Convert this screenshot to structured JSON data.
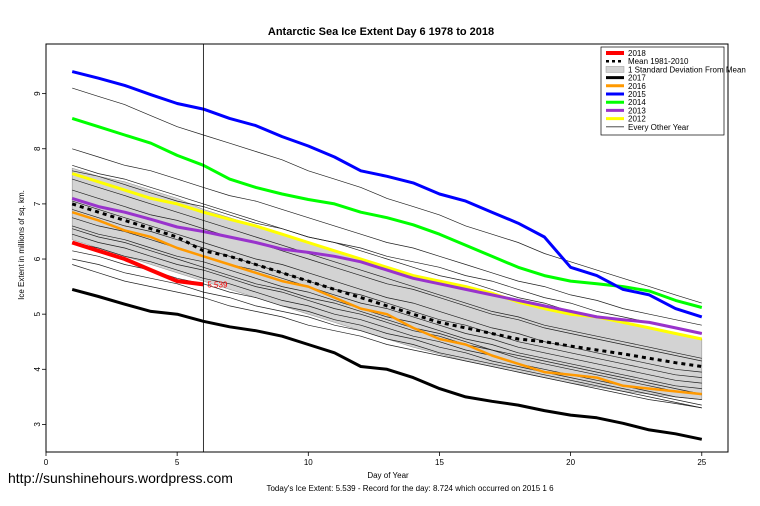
{
  "watermark": "http://sunshinehours.wordpress.com",
  "footer": "Today's Ice Extent: 5.539  - Record for the day: 8.724 which occurred on 2015 1 6",
  "chart_data": {
    "type": "line",
    "title": "Antarctic Sea Ice Extent Day 6 1978 to 2018",
    "xlabel": "Day of Year",
    "ylabel": "Ice Extent in millions of sq. km.",
    "xlim": [
      0,
      26
    ],
    "ylim": [
      2.5,
      9.9
    ],
    "xticks": [
      0,
      5,
      10,
      15,
      20,
      25
    ],
    "yticks": [
      3,
      4,
      5,
      6,
      7,
      8,
      9
    ],
    "current_day": 6,
    "annotation": {
      "x": 6,
      "y": 5.539,
      "text": "5.539",
      "color": "#ff0000"
    },
    "std_band": {
      "x": [
        1,
        2,
        3,
        4,
        5,
        6,
        7,
        8,
        9,
        10,
        11,
        12,
        13,
        14,
        15,
        16,
        17,
        18,
        19,
        20,
        21,
        22,
        23,
        24,
        25
      ],
      "upper": [
        7.65,
        7.5,
        7.4,
        7.25,
        7.1,
        6.9,
        6.75,
        6.6,
        6.45,
        6.3,
        6.15,
        6.0,
        5.85,
        5.7,
        5.55,
        5.45,
        5.35,
        5.25,
        5.15,
        5.05,
        4.95,
        4.85,
        4.75,
        4.65,
        4.55
      ],
      "lower": [
        6.35,
        6.2,
        6.05,
        5.9,
        5.75,
        5.6,
        5.45,
        5.3,
        5.15,
        5.0,
        4.85,
        4.7,
        4.55,
        4.4,
        4.28,
        4.15,
        4.05,
        3.95,
        3.85,
        3.75,
        3.68,
        3.6,
        3.55,
        3.5,
        3.45
      ]
    },
    "series": [
      {
        "name": "2018",
        "color": "#ff0000",
        "width": 4,
        "dash": "",
        "x": [
          1,
          2,
          3,
          4,
          5,
          6
        ],
        "values": [
          6.3,
          6.15,
          6.0,
          5.8,
          5.6,
          5.54
        ]
      },
      {
        "name": "Mean 1981-2010",
        "color": "#000000",
        "width": 3,
        "dash": "4,4",
        "x": [
          1,
          2,
          3,
          4,
          5,
          6,
          7,
          8,
          9,
          10,
          11,
          12,
          13,
          14,
          15,
          16,
          17,
          18,
          19,
          20,
          21,
          22,
          23,
          24,
          25
        ],
        "values": [
          7.0,
          6.85,
          6.7,
          6.55,
          6.4,
          6.15,
          6.05,
          5.9,
          5.75,
          5.6,
          5.45,
          5.3,
          5.15,
          5.0,
          4.85,
          4.75,
          4.65,
          4.55,
          4.5,
          4.42,
          4.35,
          4.28,
          4.2,
          4.12,
          4.05
        ]
      },
      {
        "name": "2017",
        "color": "#000000",
        "width": 3,
        "dash": "",
        "x": [
          1,
          2,
          3,
          4,
          5,
          6,
          7,
          8,
          9,
          10,
          11,
          12,
          13,
          14,
          15,
          16,
          17,
          18,
          19,
          20,
          21,
          22,
          23,
          24,
          25
        ],
        "values": [
          5.45,
          5.32,
          5.18,
          5.05,
          5.0,
          4.87,
          4.77,
          4.7,
          4.6,
          4.45,
          4.3,
          4.05,
          4.0,
          3.85,
          3.65,
          3.5,
          3.42,
          3.35,
          3.25,
          3.17,
          3.12,
          3.02,
          2.9,
          2.83,
          2.73
        ]
      },
      {
        "name": "2016",
        "color": "#ff9900",
        "width": 2.5,
        "dash": "",
        "x": [
          1,
          2,
          3,
          4,
          5,
          6,
          7,
          8,
          9,
          10,
          11,
          12,
          13,
          14,
          15,
          16,
          17,
          18,
          19,
          20,
          21,
          22,
          23,
          24,
          25
        ],
        "values": [
          6.85,
          6.7,
          6.52,
          6.4,
          6.2,
          6.05,
          5.9,
          5.75,
          5.6,
          5.5,
          5.3,
          5.1,
          5.0,
          4.75,
          4.55,
          4.45,
          4.25,
          4.1,
          3.95,
          3.9,
          3.85,
          3.7,
          3.65,
          3.6,
          3.55
        ]
      },
      {
        "name": "2015",
        "color": "#0000ff",
        "width": 3,
        "dash": "",
        "x": [
          1,
          2,
          3,
          4,
          5,
          6,
          7,
          8,
          9,
          10,
          11,
          12,
          13,
          14,
          15,
          16,
          17,
          18,
          19,
          20,
          21,
          22,
          23,
          24,
          25
        ],
        "values": [
          9.4,
          9.28,
          9.15,
          8.98,
          8.82,
          8.72,
          8.55,
          8.42,
          8.22,
          8.05,
          7.85,
          7.6,
          7.5,
          7.38,
          7.18,
          7.05,
          6.85,
          6.65,
          6.4,
          5.85,
          5.7,
          5.45,
          5.35,
          5.1,
          4.95
        ]
      },
      {
        "name": "2014",
        "color": "#00ff00",
        "width": 3,
        "dash": "",
        "x": [
          1,
          2,
          3,
          4,
          5,
          6,
          7,
          8,
          9,
          10,
          11,
          12,
          13,
          14,
          15,
          16,
          17,
          18,
          19,
          20,
          21,
          22,
          23,
          24,
          25
        ],
        "values": [
          8.55,
          8.4,
          8.25,
          8.1,
          7.88,
          7.7,
          7.45,
          7.3,
          7.18,
          7.08,
          7.0,
          6.85,
          6.75,
          6.62,
          6.45,
          6.25,
          6.05,
          5.85,
          5.7,
          5.6,
          5.55,
          5.5,
          5.42,
          5.25,
          5.12
        ]
      },
      {
        "name": "2013",
        "color": "#9933cc",
        "width": 3,
        "dash": "",
        "x": [
          1,
          2,
          3,
          4,
          5,
          6,
          7,
          8,
          9,
          10,
          11,
          12,
          13,
          14,
          15,
          16,
          17,
          18,
          19,
          20,
          21,
          22,
          23,
          24,
          25
        ],
        "values": [
          7.1,
          6.95,
          6.85,
          6.72,
          6.58,
          6.5,
          6.4,
          6.3,
          6.18,
          6.12,
          6.05,
          5.95,
          5.8,
          5.65,
          5.55,
          5.45,
          5.35,
          5.25,
          5.15,
          5.05,
          4.95,
          4.9,
          4.85,
          4.75,
          4.65
        ]
      },
      {
        "name": "2012",
        "color": "#ffff00",
        "width": 3,
        "dash": "",
        "x": [
          1,
          2,
          3,
          4,
          5,
          6,
          7,
          8,
          9,
          10,
          11,
          12,
          13,
          14,
          15,
          16,
          17,
          18,
          19,
          20,
          21,
          22,
          23,
          24,
          25
        ],
        "values": [
          7.55,
          7.4,
          7.25,
          7.1,
          7.0,
          6.85,
          6.72,
          6.6,
          6.45,
          6.3,
          6.15,
          6.0,
          5.85,
          5.7,
          5.6,
          5.5,
          5.38,
          5.22,
          5.1,
          5.0,
          4.95,
          4.85,
          4.75,
          4.65,
          4.55
        ]
      }
    ],
    "other_years_label": "Every Other Year",
    "other_years": [
      [
        9.1,
        8.95,
        8.8,
        8.6,
        8.4,
        8.25,
        8.1,
        7.95,
        7.8,
        7.6,
        7.45,
        7.3,
        7.1,
        6.95,
        6.8,
        6.6,
        6.45,
        6.3,
        6.1,
        5.95,
        5.8,
        5.65,
        5.5,
        5.35,
        5.2
      ],
      [
        8.0,
        7.85,
        7.7,
        7.6,
        7.45,
        7.3,
        7.15,
        7.05,
        6.9,
        6.75,
        6.6,
        6.45,
        6.3,
        6.2,
        6.05,
        5.9,
        5.75,
        5.6,
        5.5,
        5.35,
        5.25,
        5.1,
        5.0,
        4.9,
        4.8
      ],
      [
        7.7,
        7.55,
        7.45,
        7.3,
        7.15,
        7.0,
        6.85,
        6.7,
        6.55,
        6.4,
        6.3,
        6.15,
        6.0,
        5.85,
        5.7,
        5.6,
        5.45,
        5.3,
        5.2,
        5.05,
        4.95,
        4.85,
        4.75,
        4.65,
        4.55
      ],
      [
        7.45,
        7.3,
        7.15,
        7.0,
        6.85,
        6.7,
        6.55,
        6.4,
        6.25,
        6.1,
        5.95,
        5.8,
        5.65,
        5.5,
        5.35,
        5.2,
        5.05,
        4.95,
        4.8,
        4.7,
        4.6,
        4.5,
        4.4,
        4.3,
        4.2
      ],
      [
        7.25,
        7.1,
        6.95,
        6.8,
        6.7,
        6.55,
        6.4,
        6.3,
        6.15,
        6.0,
        5.85,
        5.7,
        5.55,
        5.45,
        5.3,
        5.15,
        5.0,
        4.9,
        4.75,
        4.65,
        4.55,
        4.45,
        4.35,
        4.25,
        4.15
      ],
      [
        7.05,
        6.9,
        6.75,
        6.6,
        6.45,
        6.3,
        6.15,
        6.0,
        5.9,
        5.75,
        5.6,
        5.45,
        5.3,
        5.2,
        5.05,
        4.9,
        4.75,
        4.65,
        4.5,
        4.4,
        4.3,
        4.2,
        4.1,
        4.0,
        3.95
      ],
      [
        6.9,
        6.75,
        6.6,
        6.5,
        6.35,
        6.2,
        6.05,
        5.9,
        5.75,
        5.6,
        5.45,
        5.35,
        5.2,
        5.05,
        4.9,
        4.8,
        4.65,
        4.5,
        4.4,
        4.3,
        4.2,
        4.1,
        4.0,
        3.9,
        3.85
      ],
      [
        6.75,
        6.6,
        6.5,
        6.35,
        6.2,
        6.05,
        5.9,
        5.8,
        5.65,
        5.5,
        5.35,
        5.2,
        5.1,
        4.95,
        4.8,
        4.65,
        4.55,
        4.4,
        4.3,
        4.2,
        4.1,
        4.0,
        3.9,
        3.8,
        3.75
      ],
      [
        6.6,
        6.45,
        6.35,
        6.2,
        6.05,
        5.95,
        5.8,
        5.65,
        5.5,
        5.4,
        5.25,
        5.1,
        4.95,
        4.85,
        4.7,
        4.55,
        4.45,
        4.3,
        4.2,
        4.1,
        4.0,
        3.9,
        3.8,
        3.7,
        3.65
      ],
      [
        6.45,
        6.3,
        6.2,
        6.05,
        5.9,
        5.8,
        5.65,
        5.5,
        5.4,
        5.25,
        5.1,
        5.0,
        4.85,
        4.7,
        4.6,
        4.45,
        4.35,
        4.2,
        4.1,
        4.0,
        3.9,
        3.8,
        3.7,
        3.6,
        3.55
      ],
      [
        6.3,
        6.2,
        6.05,
        5.95,
        5.8,
        5.65,
        5.55,
        5.4,
        5.25,
        5.15,
        5.0,
        4.9,
        4.75,
        4.6,
        4.5,
        4.35,
        4.25,
        4.1,
        4.0,
        3.9,
        3.8,
        3.7,
        3.6,
        3.5,
        3.45
      ],
      [
        6.15,
        6.05,
        5.9,
        5.8,
        5.65,
        5.55,
        5.4,
        5.3,
        5.15,
        5.05,
        4.9,
        4.8,
        4.65,
        4.55,
        4.4,
        4.3,
        4.15,
        4.05,
        3.95,
        3.85,
        3.75,
        3.65,
        3.55,
        3.45,
        3.35
      ],
      [
        6.0,
        5.9,
        5.75,
        5.65,
        5.55,
        5.4,
        5.3,
        5.15,
        5.05,
        4.95,
        4.8,
        4.7,
        4.55,
        4.45,
        4.3,
        4.2,
        4.1,
        4.0,
        3.9,
        3.8,
        3.7,
        3.6,
        3.5,
        3.4,
        3.3
      ],
      [
        5.9,
        5.75,
        5.6,
        5.5,
        5.4,
        5.3,
        5.15,
        5.05,
        4.95,
        4.8,
        4.7,
        4.6,
        4.45,
        4.35,
        4.25,
        4.15,
        4.05,
        3.95,
        3.85,
        3.75,
        3.65,
        3.55,
        3.45,
        3.38,
        3.3
      ],
      [
        7.6,
        7.5,
        7.35,
        7.2,
        7.05,
        6.95,
        6.8,
        6.65,
        6.55,
        6.4,
        6.3,
        6.2,
        6.05,
        5.95,
        5.85,
        5.7,
        5.6,
        5.45,
        5.3,
        5.2,
        5.05,
        4.95,
        4.85,
        4.75,
        4.65
      ],
      [
        6.55,
        6.4,
        6.3,
        6.15,
        6.0,
        5.85,
        5.7,
        5.55,
        5.45,
        5.3,
        5.2,
        5.05,
        4.9,
        4.75,
        4.65,
        4.5,
        4.35,
        4.25,
        4.15,
        4.05,
        3.95,
        3.85,
        3.75,
        3.65,
        3.55
      ]
    ]
  }
}
